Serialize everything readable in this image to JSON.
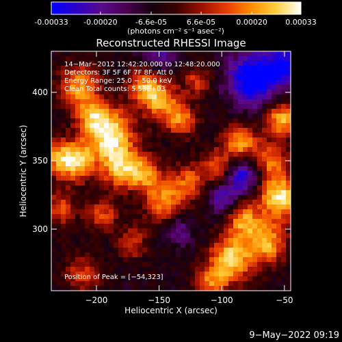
{
  "colorbar": {
    "tick_labels": [
      "-0.00033",
      "-0.00020",
      "-6.6e-05",
      "6.6e-05",
      "0.00020",
      "0.00033"
    ],
    "tick_values": [
      -0.00033,
      -0.0002,
      -6.6e-05,
      6.6e-05,
      0.0002,
      0.00033
    ],
    "range": [
      -0.00033,
      0.00033
    ],
    "unit_label": "(photons cm⁻² s⁻¹ asec⁻²)",
    "gradient": [
      "#0000ff",
      "#2d00c8",
      "#5a0a8c",
      "#4b0050",
      "#150010",
      "#3a0000",
      "#9a1000",
      "#e83a00",
      "#ff8c00",
      "#ffd040",
      "#ffffff"
    ]
  },
  "chart_data": {
    "type": "heatmap",
    "title": "Reconstructed RHESSI Image",
    "xlabel": "Heliocentric X (arcsec)",
    "ylabel": "Heliocentric Y (arcsec)",
    "xlim": [
      -236,
      -45
    ],
    "ylim": [
      255,
      430
    ],
    "x_ticks": [
      -200,
      -150,
      -100,
      -50
    ],
    "y_ticks": [
      300,
      350,
      400
    ],
    "x_tick_labels": [
      "−200",
      "−150",
      "−100",
      "−50"
    ],
    "y_tick_labels": [
      "300",
      "350",
      "400"
    ],
    "info_lines": [
      "14−Mar−2012 12:42:20.000 to 12:48:20.000",
      "Detectors: 3F 5F 6F 7F 8F, Att 0",
      "Energy Range: 25.0 − 50.0 keV",
      "Clean    Total counts: 5.53E+03"
    ],
    "peak_label": "Position of Peak = [−54,323]",
    "peak_position": [
      -54,
      323
    ],
    "sources": [
      {
        "x": -189,
        "y": 370,
        "amp": 1.0,
        "r": 13
      },
      {
        "x": -214,
        "y": 405,
        "amp": 0.7,
        "r": 11
      },
      {
        "x": -205,
        "y": 383,
        "amp": 0.55,
        "r": 9
      },
      {
        "x": -230,
        "y": 352,
        "amp": 0.65,
        "r": 10
      },
      {
        "x": -214,
        "y": 350,
        "amp": 0.75,
        "r": 10
      },
      {
        "x": -180,
        "y": 345,
        "amp": 0.8,
        "r": 11
      },
      {
        "x": -160,
        "y": 340,
        "amp": 0.65,
        "r": 9
      },
      {
        "x": -145,
        "y": 320,
        "amp": 0.7,
        "r": 11
      },
      {
        "x": -125,
        "y": 335,
        "amp": 0.55,
        "r": 9
      },
      {
        "x": -150,
        "y": 395,
        "amp": 0.75,
        "r": 10
      },
      {
        "x": -133,
        "y": 380,
        "amp": 0.65,
        "r": 9
      },
      {
        "x": -163,
        "y": 405,
        "amp": 0.6,
        "r": 9
      },
      {
        "x": -120,
        "y": 408,
        "amp": 0.45,
        "r": 8
      },
      {
        "x": -103,
        "y": 345,
        "amp": 0.55,
        "r": 9
      },
      {
        "x": -85,
        "y": 362,
        "amp": 0.75,
        "r": 10
      },
      {
        "x": -83,
        "y": 307,
        "amp": 0.7,
        "r": 9
      },
      {
        "x": -93,
        "y": 278,
        "amp": 0.9,
        "r": 12
      },
      {
        "x": -54,
        "y": 323,
        "amp": 1.0,
        "r": 11
      },
      {
        "x": -52,
        "y": 380,
        "amp": 0.85,
        "r": 9
      },
      {
        "x": -60,
        "y": 350,
        "amp": 0.6,
        "r": 9
      },
      {
        "x": -65,
        "y": 290,
        "amp": 0.8,
        "r": 11
      },
      {
        "x": -108,
        "y": 260,
        "amp": 0.55,
        "r": 9
      },
      {
        "x": -228,
        "y": 315,
        "amp": 0.5,
        "r": 9
      },
      {
        "x": -212,
        "y": 268,
        "amp": 0.45,
        "r": 10
      },
      {
        "x": -170,
        "y": 290,
        "amp": 0.4,
        "r": 9
      },
      {
        "x": -195,
        "y": 310,
        "amp": 0.5,
        "r": 9
      }
    ],
    "cold_regions": [
      {
        "x": -75,
        "y": 410,
        "amp": 0.9,
        "r": 14
      },
      {
        "x": -50,
        "y": 420,
        "amp": 0.7,
        "r": 10
      },
      {
        "x": -85,
        "y": 340,
        "amp": 0.7,
        "r": 10
      },
      {
        "x": -100,
        "y": 322,
        "amp": 0.5,
        "r": 8
      },
      {
        "x": -150,
        "y": 430,
        "amp": 0.5,
        "r": 10
      },
      {
        "x": -135,
        "y": 300,
        "amp": 0.4,
        "r": 9
      }
    ]
  },
  "footer": {
    "timestamp": "9−May−2022 09:19"
  }
}
